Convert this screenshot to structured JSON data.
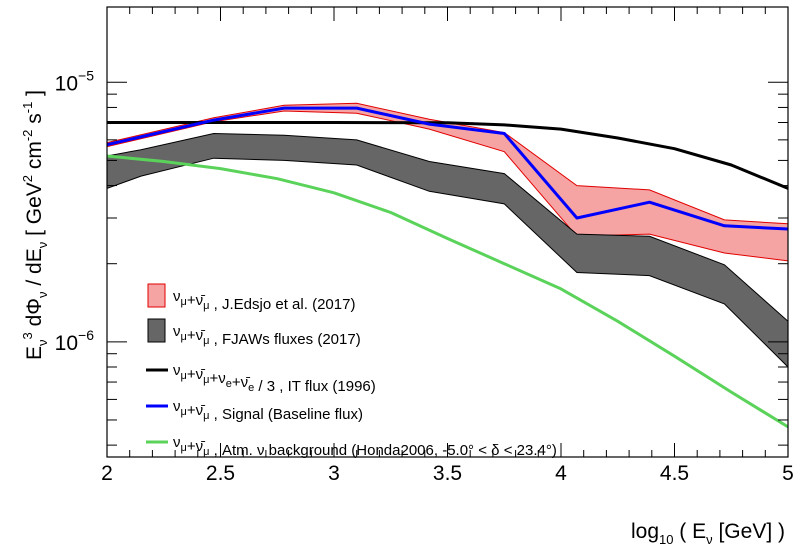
{
  "chart_data": {
    "type": "line",
    "xlabel": "log₁₀ ( Eν [GeV] )",
    "ylabel": "Eν³ dΦν / dEν [ GeV² cm⁻² s⁻¹ ]",
    "xlim": [
      2,
      5
    ],
    "ylim": [
      3.6e-07,
      1.95e-05
    ],
    "y_scale": "log",
    "x_ticks": [
      "2",
      "2.5",
      "3",
      "3.5",
      "4",
      "4.5",
      "5"
    ],
    "y_ticks": [
      {
        "value": 1e-05,
        "base": "10",
        "exp": "−5"
      },
      {
        "value": 1e-06,
        "base": "10",
        "exp": "−6"
      }
    ],
    "grid": false,
    "legend_position": "bottom-left",
    "bands": [
      {
        "id": "edsjo",
        "legend": "νμ+ν̄μ , J.Edsjo et al. (2017)",
        "fill": "#f6a3a3",
        "stroke": "#e10000",
        "x": [
          2.0,
          2.47,
          2.78,
          3.1,
          3.42,
          3.75,
          4.07,
          4.39,
          4.72,
          5.0
        ],
        "upper": [
          5.85e-06,
          7.3e-06,
          8.15e-06,
          8.3e-06,
          7.2e-06,
          6.4e-06,
          4e-06,
          3.85e-06,
          2.95e-06,
          2.85e-06
        ],
        "lower": [
          5.65e-06,
          7.05e-06,
          7.75e-06,
          7.6e-06,
          6.6e-06,
          5.4e-06,
          2.55e-06,
          2.6e-06,
          2.2e-06,
          2.05e-06
        ]
      },
      {
        "id": "fjaws",
        "legend": "νμ+ν̄μ , FJAWs fluxes (2017)",
        "fill": "#666666",
        "stroke": "#000000",
        "x": [
          2.0,
          2.15,
          2.47,
          2.78,
          3.1,
          3.42,
          3.75,
          4.07,
          4.39,
          4.72,
          5.0
        ],
        "upper": [
          5.2e-06,
          5.5e-06,
          6.35e-06,
          6.25e-06,
          6e-06,
          4.95e-06,
          4.45e-06,
          2.6e-06,
          2.55e-06,
          1.98e-06,
          1.2e-06
        ],
        "lower": [
          3.9e-06,
          4.35e-06,
          5.1e-06,
          5e-06,
          4.8e-06,
          3.8e-06,
          3.4e-06,
          1.85e-06,
          1.8e-06,
          1.4e-06,
          8e-07
        ]
      }
    ],
    "series": [
      {
        "id": "it",
        "legend": "νμ+ν̄μ+νe+ν̄e / 3 , IT flux (1996)",
        "color": "#000000",
        "x": [
          2.0,
          2.5,
          3.0,
          3.5,
          3.75,
          4.0,
          4.25,
          4.5,
          4.75,
          5.0
        ],
        "y": [
          7e-06,
          7e-06,
          7e-06,
          6.98e-06,
          6.85e-06,
          6.6e-06,
          6.1e-06,
          5.55e-06,
          4.8e-06,
          3.9e-06
        ]
      },
      {
        "id": "signal",
        "legend": "νμ+ν̄μ , Signal (Baseline flux)",
        "color": "#0000ff",
        "x": [
          2.0,
          2.47,
          2.78,
          3.1,
          3.42,
          3.75,
          4.07,
          4.39,
          4.72,
          5.0
        ],
        "y": [
          5.75e-06,
          7.15e-06,
          7.95e-06,
          7.95e-06,
          6.9e-06,
          6.35e-06,
          3e-06,
          3.45e-06,
          2.8e-06,
          2.72e-06
        ]
      },
      {
        "id": "atm",
        "legend": "νμ+ν̄μ , Atm. ν background (Honda2006, -5.0° < δ < 23.4°)",
        "color": "#5bd35b",
        "x": [
          2.0,
          2.25,
          2.5,
          2.75,
          3.0,
          3.25,
          3.5,
          3.75,
          4.0,
          4.25,
          4.5,
          4.75,
          5.0
        ],
        "y": [
          5.2e-06,
          4.95e-06,
          4.65e-06,
          4.25e-06,
          3.75e-06,
          3.15e-06,
          2.5e-06,
          2e-06,
          1.6e-06,
          1.2e-06,
          8.8e-07,
          6.4e-07,
          4.7e-07
        ]
      }
    ]
  }
}
